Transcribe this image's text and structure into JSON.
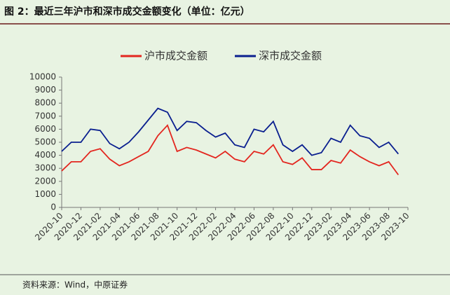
{
  "chart_data": {
    "type": "line",
    "title": "图 2：最近三年沪市和深市成交金额变化（单位：亿元）",
    "source": "资料来源：Wind，中原证券",
    "x": [
      "2020-10",
      "2020-11",
      "2020-12",
      "2021-01",
      "2021-02",
      "2021-03",
      "2021-04",
      "2021-05",
      "2021-06",
      "2021-07",
      "2021-08",
      "2021-09",
      "2021-10",
      "2021-11",
      "2021-12",
      "2022-01",
      "2022-02",
      "2022-03",
      "2022-04",
      "2022-05",
      "2022-06",
      "2022-07",
      "2022-08",
      "2022-09",
      "2022-10",
      "2022-11",
      "2022-12",
      "2023-01",
      "2023-02",
      "2023-03",
      "2023-04",
      "2023-05",
      "2023-06",
      "2023-07",
      "2023-08",
      "2023-09"
    ],
    "xticks": [
      "2020-10",
      "2020-12",
      "2021-02",
      "2021-04",
      "2021-06",
      "2021-08",
      "2021-10",
      "2021-12",
      "2022-02",
      "2022-04",
      "2022-06",
      "2022-08",
      "2022-10",
      "2022-12",
      "2023-02",
      "2023-04",
      "2023-06",
      "2023-08",
      "2023-10"
    ],
    "series": [
      {
        "name": "沪市成交金额",
        "color": "#e3261f",
        "values": [
          2800,
          3500,
          3500,
          4300,
          4500,
          3700,
          3200,
          3500,
          3900,
          4300,
          5500,
          6300,
          4300,
          4600,
          4400,
          4100,
          3800,
          4300,
          3700,
          3500,
          4300,
          4100,
          4800,
          3500,
          3300,
          3800,
          2900,
          2900,
          3600,
          3400,
          4400,
          3900,
          3500,
          3200,
          3500,
          2500
        ]
      },
      {
        "name": "深市成交金额",
        "color": "#0a1f8f",
        "values": [
          4300,
          5000,
          5000,
          6000,
          5900,
          4900,
          4500,
          5000,
          5800,
          6700,
          7600,
          7300,
          5900,
          6600,
          6500,
          5900,
          5400,
          5700,
          4800,
          4600,
          6000,
          5800,
          6600,
          4800,
          4300,
          4800,
          4000,
          4200,
          5300,
          5000,
          6300,
          5500,
          5300,
          4600,
          5000,
          4100
        ]
      }
    ],
    "ylim": [
      0,
      10000
    ],
    "yticks": [
      0,
      1000,
      2000,
      3000,
      4000,
      5000,
      6000,
      7000,
      8000,
      9000,
      10000
    ]
  }
}
